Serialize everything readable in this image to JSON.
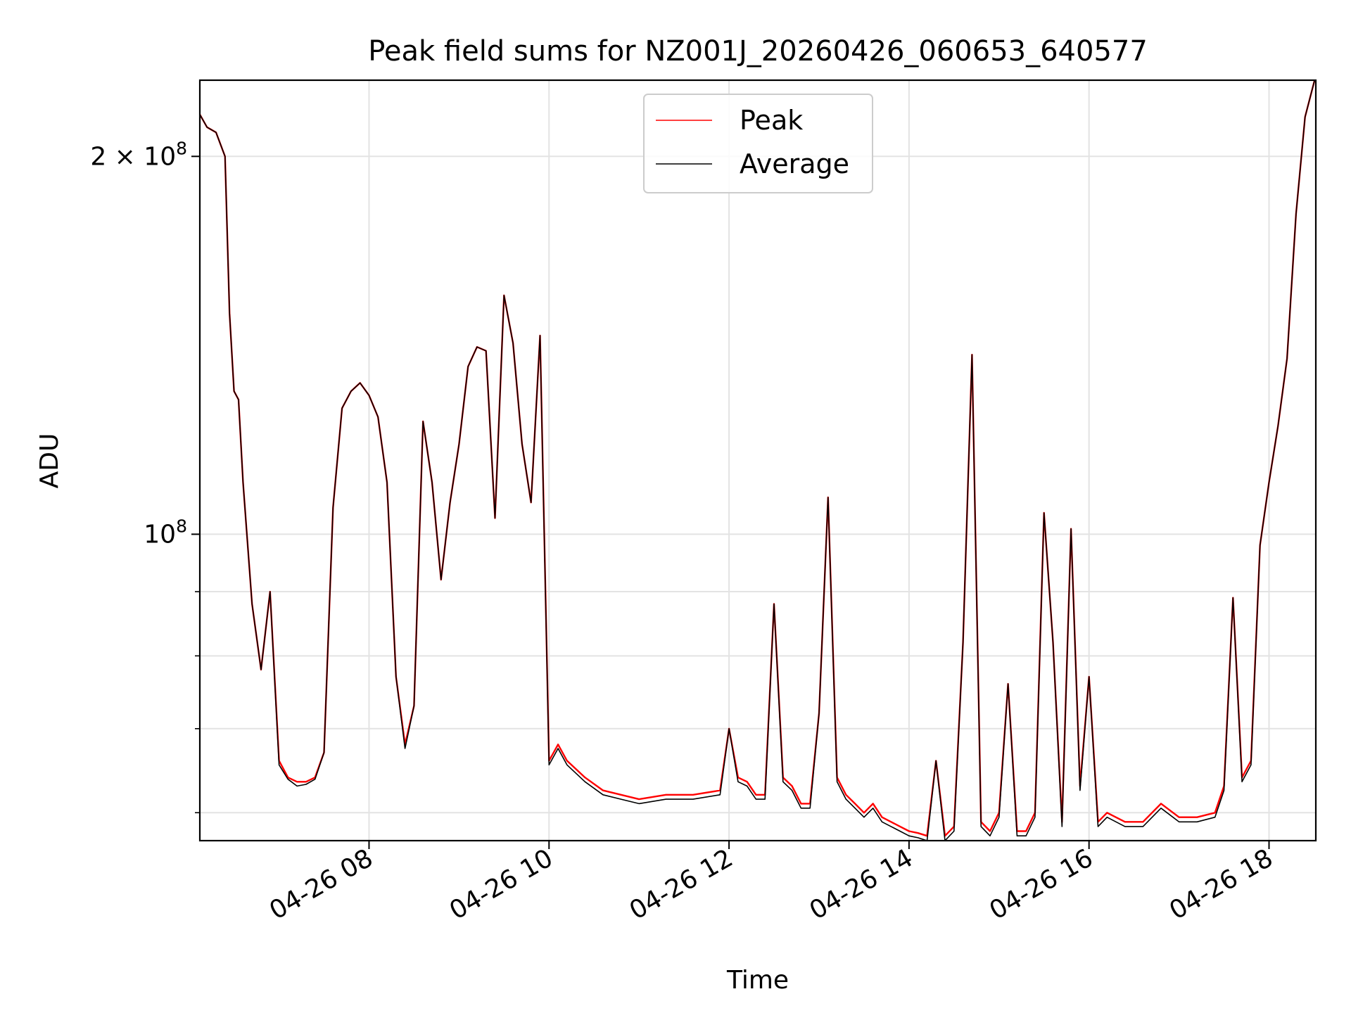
{
  "chart_data": {
    "type": "line",
    "title": "Peak field sums for NZ001J_20260426_060653_640577",
    "xlabel": "Time",
    "ylabel": "ADU",
    "yscale": "log",
    "ylim": [
      57000000,
      230000000
    ],
    "xlim": [
      6.12,
      18.52
    ],
    "grid": true,
    "legend_position": "top-center",
    "x_ticks": [
      {
        "value": 8,
        "label": "04-26 08"
      },
      {
        "value": 10,
        "label": "04-26 10"
      },
      {
        "value": 12,
        "label": "04-26 12"
      },
      {
        "value": 14,
        "label": "04-26 14"
      },
      {
        "value": 16,
        "label": "04-26 16"
      },
      {
        "value": 18,
        "label": "04-26 18"
      }
    ],
    "y_major_ticks": [
      {
        "value": 200000000,
        "label_base": "2 × 10",
        "label_exp": "8"
      },
      {
        "value": 100000000,
        "label_base": "10",
        "label_exp": "8"
      }
    ],
    "y_minor_ticks": [
      60000000,
      70000000,
      80000000,
      90000000
    ],
    "x_unit": "hour of 2026-04-26",
    "series": [
      {
        "name": "Peak",
        "color": "#ff0000",
        "x": [
          6.12,
          6.2,
          6.3,
          6.4,
          6.45,
          6.5,
          6.55,
          6.6,
          6.7,
          6.8,
          6.9,
          7.0,
          7.1,
          7.2,
          7.3,
          7.4,
          7.5,
          7.6,
          7.7,
          7.8,
          7.9,
          8.0,
          8.1,
          8.2,
          8.3,
          8.4,
          8.5,
          8.6,
          8.7,
          8.8,
          8.9,
          9.0,
          9.1,
          9.2,
          9.3,
          9.4,
          9.5,
          9.6,
          9.7,
          9.8,
          9.9,
          10.0,
          10.1,
          10.2,
          10.4,
          10.6,
          10.8,
          11.0,
          11.3,
          11.6,
          11.9,
          12.0,
          12.1,
          12.2,
          12.3,
          12.4,
          12.5,
          12.6,
          12.7,
          12.8,
          12.9,
          13.0,
          13.1,
          13.2,
          13.3,
          13.4,
          13.5,
          13.6,
          13.7,
          13.8,
          13.9,
          14.0,
          14.1,
          14.2,
          14.3,
          14.4,
          14.5,
          14.6,
          14.7,
          14.8,
          14.9,
          15.0,
          15.1,
          15.2,
          15.3,
          15.4,
          15.5,
          15.6,
          15.7,
          15.8,
          15.9,
          16.0,
          16.1,
          16.2,
          16.4,
          16.6,
          16.8,
          17.0,
          17.2,
          17.4,
          17.5,
          17.6,
          17.7,
          17.8,
          17.9,
          18.0,
          18.1,
          18.2,
          18.3,
          18.4,
          18.52
        ],
        "y": [
          216000000,
          211000000,
          209000000,
          200000000,
          150000000,
          130000000,
          128000000,
          110000000,
          88000000,
          78000000,
          90000000,
          66000000,
          64000000,
          63500000,
          63500000,
          64000000,
          67000000,
          105000000,
          126000000,
          130000000,
          132000000,
          129000000,
          124000000,
          110000000,
          77000000,
          68000000,
          73000000,
          123000000,
          110000000,
          92000000,
          106000000,
          118000000,
          136000000,
          141000000,
          140000000,
          103000000,
          155000000,
          142000000,
          118000000,
          106000000,
          144000000,
          66000000,
          68000000,
          66000000,
          64000000,
          62500000,
          62000000,
          61500000,
          62000000,
          62000000,
          62500000,
          70000000,
          64000000,
          63500000,
          62000000,
          62000000,
          88000000,
          64000000,
          63000000,
          61000000,
          61000000,
          72000000,
          107000000,
          64000000,
          62000000,
          61000000,
          60000000,
          61000000,
          59500000,
          59000000,
          58500000,
          58000000,
          57800000,
          57500000,
          66000000,
          57500000,
          58500000,
          82000000,
          139000000,
          59000000,
          58000000,
          60000000,
          76000000,
          58000000,
          58000000,
          60000000,
          104000000,
          82000000,
          59000000,
          101000000,
          63000000,
          77000000,
          59000000,
          60000000,
          59000000,
          59000000,
          61000000,
          59500000,
          59500000,
          60000000,
          63000000,
          89000000,
          64000000,
          66000000,
          98000000,
          110000000,
          122000000,
          138000000,
          180000000,
          215000000,
          232000000
        ]
      },
      {
        "name": "Average",
        "color": "#000000",
        "x": [
          6.12,
          6.2,
          6.3,
          6.4,
          6.45,
          6.5,
          6.55,
          6.6,
          6.7,
          6.8,
          6.9,
          7.0,
          7.1,
          7.2,
          7.3,
          7.4,
          7.5,
          7.6,
          7.7,
          7.8,
          7.9,
          8.0,
          8.1,
          8.2,
          8.3,
          8.4,
          8.5,
          8.6,
          8.7,
          8.8,
          8.9,
          9.0,
          9.1,
          9.2,
          9.3,
          9.4,
          9.5,
          9.6,
          9.7,
          9.8,
          9.9,
          10.0,
          10.1,
          10.2,
          10.4,
          10.6,
          10.8,
          11.0,
          11.3,
          11.6,
          11.9,
          12.0,
          12.1,
          12.2,
          12.3,
          12.4,
          12.5,
          12.6,
          12.7,
          12.8,
          12.9,
          13.0,
          13.1,
          13.2,
          13.3,
          13.4,
          13.5,
          13.6,
          13.7,
          13.8,
          13.9,
          14.0,
          14.1,
          14.2,
          14.3,
          14.4,
          14.5,
          14.6,
          14.7,
          14.8,
          14.9,
          15.0,
          15.1,
          15.2,
          15.3,
          15.4,
          15.5,
          15.6,
          15.7,
          15.8,
          15.9,
          16.0,
          16.1,
          16.2,
          16.4,
          16.6,
          16.8,
          17.0,
          17.2,
          17.4,
          17.5,
          17.6,
          17.7,
          17.8,
          17.9,
          18.0,
          18.1,
          18.2,
          18.3,
          18.4,
          18.52
        ],
        "y": [
          216000000,
          211000000,
          209000000,
          200000000,
          150000000,
          130000000,
          128000000,
          110000000,
          88000000,
          78000000,
          90000000,
          65500000,
          63800000,
          63000000,
          63200000,
          63800000,
          67000000,
          105000000,
          126000000,
          130000000,
          132000000,
          129000000,
          124000000,
          110000000,
          77000000,
          67500000,
          73000000,
          123000000,
          110000000,
          92000000,
          106000000,
          118000000,
          136000000,
          141000000,
          140000000,
          103000000,
          155000000,
          142000000,
          118000000,
          106000000,
          144000000,
          65500000,
          67500000,
          65500000,
          63500000,
          62000000,
          61500000,
          61000000,
          61500000,
          61500000,
          62000000,
          70000000,
          63500000,
          63000000,
          61500000,
          61500000,
          88000000,
          63500000,
          62500000,
          60500000,
          60500000,
          72000000,
          107000000,
          63500000,
          61500000,
          60500000,
          59500000,
          60500000,
          59000000,
          58500000,
          58000000,
          57500000,
          57300000,
          57000000,
          66000000,
          57000000,
          58000000,
          82000000,
          139000000,
          58500000,
          57500000,
          59500000,
          76000000,
          57500000,
          57500000,
          59500000,
          104000000,
          82000000,
          58500000,
          101000000,
          62500000,
          77000000,
          58500000,
          59500000,
          58500000,
          58500000,
          60500000,
          59000000,
          59000000,
          59500000,
          62500000,
          89000000,
          63500000,
          65500000,
          98000000,
          110000000,
          122000000,
          138000000,
          180000000,
          215000000,
          232000000
        ]
      }
    ]
  }
}
